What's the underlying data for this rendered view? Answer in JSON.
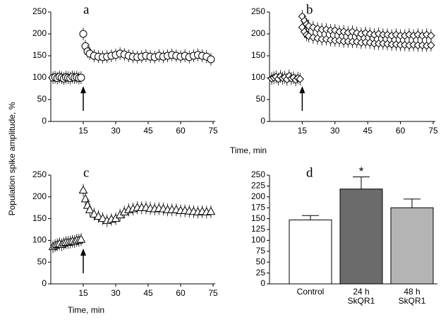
{
  "chart_data": [
    {
      "type": "scatter",
      "label": "a",
      "ylabel": "Population spike amplitude, %",
      "x": [
        1,
        2,
        3,
        4,
        5,
        6,
        7,
        8,
        9,
        10,
        11,
        12,
        13,
        14,
        15,
        16,
        17,
        18,
        20,
        22,
        24,
        26,
        28,
        30,
        32,
        34,
        36,
        38,
        40,
        42,
        44,
        46,
        48,
        50,
        52,
        54,
        56,
        58,
        60,
        62,
        64,
        66,
        68,
        70,
        72,
        74
      ],
      "series": [
        {
          "marker": "circle",
          "color": "#000000",
          "values": [
            100,
            101,
            99,
            102,
            100,
            98,
            101,
            100,
            99,
            102,
            100,
            101,
            99,
            100,
            200,
            172,
            160,
            155,
            150,
            148,
            147,
            148,
            150,
            152,
            155,
            153,
            150,
            148,
            147,
            148,
            150,
            148,
            147,
            150,
            148,
            150,
            152,
            150,
            148,
            150,
            147,
            150,
            152,
            150,
            148,
            142
          ]
        }
      ],
      "arrow_at": 15,
      "xlim": [
        0,
        75
      ],
      "ylim": [
        0,
        250
      ],
      "xticks": [
        15,
        30,
        45,
        60,
        75
      ],
      "yticks": [
        0,
        50,
        100,
        150,
        200,
        250
      ]
    },
    {
      "type": "scatter",
      "label": "b",
      "xlabel": "Time, min",
      "x": [
        1,
        2,
        3,
        4,
        5,
        6,
        7,
        8,
        9,
        10,
        11,
        12,
        13,
        14,
        15,
        16,
        17,
        18,
        20,
        22,
        24,
        26,
        28,
        30,
        32,
        34,
        36,
        38,
        40,
        42,
        44,
        46,
        48,
        50,
        52,
        54,
        56,
        58,
        60,
        62,
        64,
        66,
        68,
        70,
        72,
        74
      ],
      "series": [
        {
          "marker": "diamond",
          "color": "#000000",
          "values": [
            98,
            100,
            102,
            97,
            103,
            99,
            101,
            96,
            104,
            98,
            100,
            95,
            99,
            97,
            240,
            230,
            222,
            218,
            215,
            212,
            210,
            210,
            208,
            208,
            205,
            205,
            203,
            205,
            202,
            200,
            202,
            200,
            198,
            200,
            198,
            198,
            196,
            198,
            196,
            196,
            198,
            196,
            198,
            196,
            198,
            196
          ]
        },
        {
          "marker": "diamond",
          "color": "#000000",
          "values": [
            null,
            null,
            null,
            null,
            null,
            null,
            null,
            null,
            null,
            null,
            null,
            null,
            null,
            null,
            215,
            205,
            198,
            195,
            192,
            190,
            188,
            188,
            186,
            185,
            185,
            183,
            183,
            182,
            182,
            180,
            181,
            180,
            178,
            178,
            178,
            177,
            176,
            176,
            175,
            175,
            174,
            175,
            174,
            174,
            173,
            174
          ]
        }
      ],
      "arrow_at": 15,
      "xlim": [
        0,
        75
      ],
      "ylim": [
        0,
        250
      ],
      "xticks": [
        15,
        30,
        45,
        60,
        75
      ],
      "yticks": [
        0,
        50,
        100,
        150,
        200,
        250
      ]
    },
    {
      "type": "scatter",
      "label": "c",
      "xlabel": "Time, min",
      "x": [
        1,
        2,
        3,
        4,
        5,
        6,
        7,
        8,
        9,
        10,
        11,
        12,
        13,
        14,
        15,
        16,
        17,
        18,
        20,
        22,
        24,
        26,
        28,
        30,
        32,
        34,
        36,
        38,
        40,
        42,
        44,
        46,
        48,
        50,
        52,
        54,
        56,
        58,
        60,
        62,
        64,
        66,
        68,
        70,
        72,
        74
      ],
      "series": [
        {
          "marker": "triangle",
          "color": "#000000",
          "values": [
            85,
            88,
            90,
            92,
            90,
            93,
            95,
            95,
            96,
            98,
            97,
            100,
            100,
            102,
            215,
            195,
            180,
            170,
            160,
            155,
            150,
            145,
            148,
            150,
            158,
            165,
            170,
            172,
            175,
            175,
            175,
            173,
            172,
            173,
            172,
            170,
            170,
            170,
            168,
            168,
            167,
            166,
            165,
            166,
            165,
            166
          ]
        }
      ],
      "arrow_at": 15,
      "xlim": [
        0,
        75
      ],
      "ylim": [
        0,
        250
      ],
      "xticks": [
        15,
        30,
        45,
        60,
        75
      ],
      "yticks": [
        0,
        50,
        100,
        150,
        200,
        250
      ]
    },
    {
      "type": "bar",
      "label": "d",
      "categories": [
        "Control",
        "24 h\nSkQR1",
        "48 h\nSkQR1"
      ],
      "values": [
        147,
        218,
        175
      ],
      "errors": [
        10,
        28,
        20
      ],
      "colors": [
        "#ffffff",
        "#6b6b6b",
        "#b4b4b4"
      ],
      "annotations": [
        {
          "category": 1,
          "text": "*"
        }
      ],
      "ylim": [
        0,
        250
      ],
      "yticks": [
        0,
        25,
        50,
        75,
        100,
        125,
        150,
        175,
        200,
        225,
        250
      ]
    }
  ]
}
